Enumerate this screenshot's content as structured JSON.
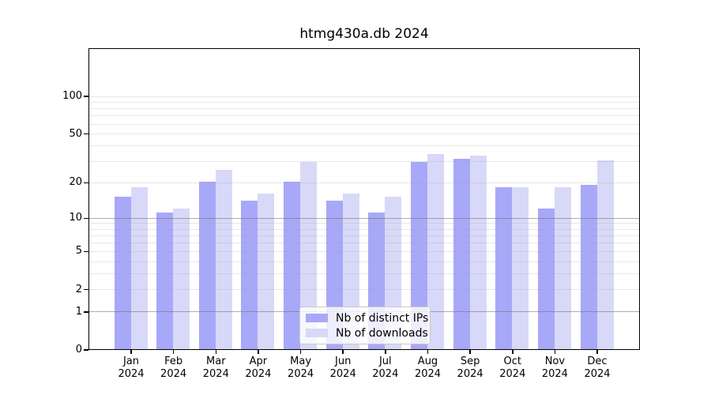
{
  "title": "htmg430a.db 2024",
  "colors": {
    "ips_bar": "#a8a8f8",
    "downloads_bar": "#d8d8f8",
    "grid_minor": "rgba(160,160,160,0.25)",
    "grid_major": "rgba(110,110,110,0.55)",
    "axis": "#000000",
    "legend_border": "#c9c9c9"
  },
  "chart_data": {
    "type": "bar",
    "title": "htmg430a.db 2024",
    "scale": "log1p",
    "grid": "on",
    "legend_position": "bottom-center",
    "categories": [
      "Jan",
      "Feb",
      "Mar",
      "Apr",
      "May",
      "Jun",
      "Jul",
      "Aug",
      "Sep",
      "Oct",
      "Nov",
      "Dec"
    ],
    "x_year_line": "2024",
    "series": [
      {
        "name": "Nb of distinct IPs",
        "values": [
          15,
          11,
          20,
          14,
          20,
          14,
          11,
          29,
          31,
          18,
          12,
          19
        ]
      },
      {
        "name": "Nb of downloads",
        "values": [
          18,
          12,
          25,
          16,
          29,
          16,
          15,
          34,
          33,
          18,
          18,
          30
        ]
      }
    ],
    "y_ticks": [
      0,
      1,
      2,
      5,
      10,
      20,
      50,
      100
    ],
    "y_grid_minor": [
      2,
      3,
      4,
      5,
      6,
      7,
      8,
      9,
      20,
      30,
      40,
      50,
      60,
      70,
      80,
      90,
      100
    ],
    "y_grid_major": [
      1,
      10
    ],
    "ylim": [
      0,
      100
    ],
    "xlabel": "",
    "ylabel": ""
  }
}
